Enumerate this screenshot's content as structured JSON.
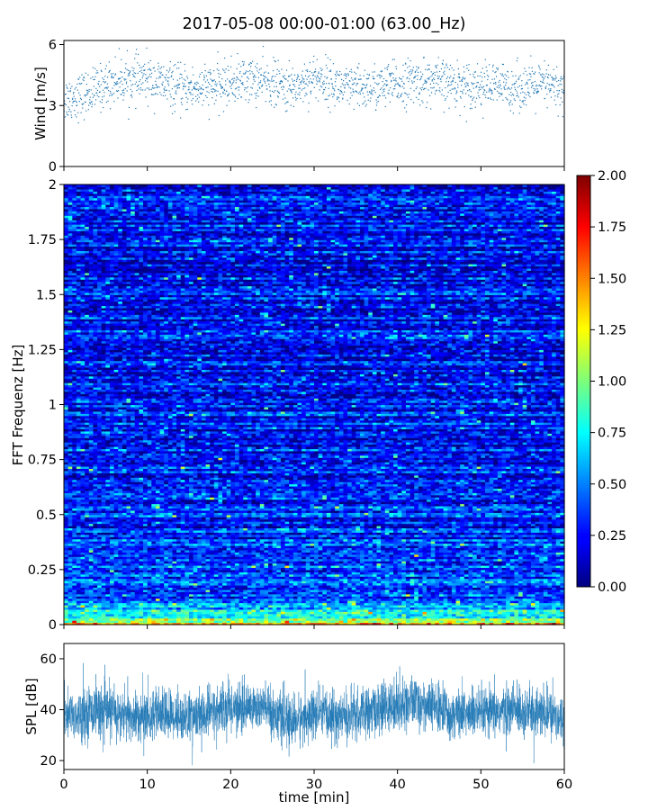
{
  "figure": {
    "title": "2017-05-08 00:00-01:00 (63.00_Hz)"
  },
  "chart_data": [
    {
      "type": "scatter",
      "name": "wind",
      "ylabel": "Wind [m/s]",
      "xlim": [
        0,
        60
      ],
      "ylim": [
        0,
        6.2
      ],
      "yticks": [
        "0",
        "3",
        "6"
      ],
      "color": "#1f77b4",
      "point_count": 1800,
      "segments": [
        {
          "t": 0,
          "mean": 3.3
        },
        {
          "t": 3,
          "mean": 3.6
        },
        {
          "t": 6,
          "mean": 4.2
        },
        {
          "t": 10,
          "mean": 4.3
        },
        {
          "t": 14,
          "mean": 3.8
        },
        {
          "t": 18,
          "mean": 3.9
        },
        {
          "t": 22,
          "mean": 4.3
        },
        {
          "t": 25,
          "mean": 4.1
        },
        {
          "t": 27,
          "mean": 3.8
        },
        {
          "t": 30,
          "mean": 4.4
        },
        {
          "t": 34,
          "mean": 3.8
        },
        {
          "t": 38,
          "mean": 3.9
        },
        {
          "t": 42,
          "mean": 4.2
        },
        {
          "t": 46,
          "mean": 4.1
        },
        {
          "t": 50,
          "mean": 4.0
        },
        {
          "t": 54,
          "mean": 3.9
        },
        {
          "t": 58,
          "mean": 4.0
        },
        {
          "t": 60,
          "mean": 3.7
        }
      ],
      "spread": 0.55
    },
    {
      "type": "heatmap",
      "name": "spectrogram",
      "ylabel": "FFT Frequenz [Hz]",
      "xlim": [
        0,
        60
      ],
      "ylim": [
        0,
        2
      ],
      "yticks": [
        "0",
        "0.25",
        "0.5",
        "0.75",
        "1",
        "1.25",
        "1.5",
        "1.75",
        "2"
      ],
      "colormap": "jet",
      "clim": [
        0,
        2
      ],
      "colorbar_ticks": [
        "0.00",
        "0.25",
        "0.50",
        "0.75",
        "1.00",
        "1.25",
        "1.50",
        "1.75",
        "2.00"
      ],
      "time_bins": 120,
      "freq_bins": 200
    },
    {
      "type": "line",
      "name": "spl",
      "ylabel": "SPL [dB]",
      "xlabel": "time [min]",
      "xlim": [
        0,
        60
      ],
      "ylim": [
        16.5,
        66
      ],
      "yticks": [
        "20",
        "40",
        "60"
      ],
      "xticks": [
        "0",
        "10",
        "20",
        "30",
        "40",
        "50",
        "60"
      ],
      "color": "#1f77b4",
      "sample_count": 3600,
      "segments": [
        {
          "t": 0,
          "mean": 37
        },
        {
          "t": 4,
          "mean": 40
        },
        {
          "t": 8,
          "mean": 37
        },
        {
          "t": 12,
          "mean": 38
        },
        {
          "t": 16,
          "mean": 37
        },
        {
          "t": 20,
          "mean": 41
        },
        {
          "t": 24,
          "mean": 41
        },
        {
          "t": 27,
          "mean": 35
        },
        {
          "t": 30,
          "mean": 38
        },
        {
          "t": 34,
          "mean": 37
        },
        {
          "t": 38,
          "mean": 40
        },
        {
          "t": 42,
          "mean": 43
        },
        {
          "t": 46,
          "mean": 39
        },
        {
          "t": 50,
          "mean": 38
        },
        {
          "t": 54,
          "mean": 40
        },
        {
          "t": 58,
          "mean": 38
        },
        {
          "t": 60,
          "mean": 37
        }
      ],
      "spread": 6
    }
  ]
}
